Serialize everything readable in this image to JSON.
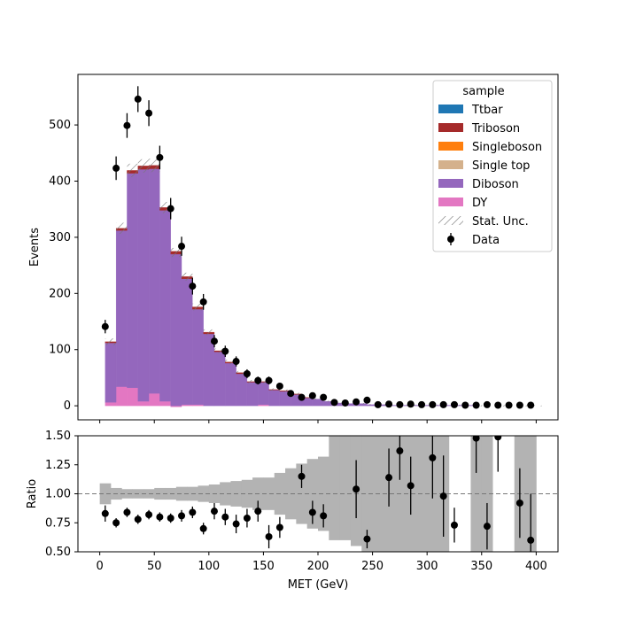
{
  "chart_data": [
    {
      "type": "bar",
      "stacked": true,
      "ylabel": "Events",
      "xlim": [
        -20,
        420
      ],
      "ylim": [
        -25,
        590
      ],
      "yticks": [
        0,
        100,
        200,
        300,
        400,
        500
      ],
      "bin_edges": [
        5,
        15,
        25,
        35,
        45,
        55,
        65,
        75,
        85,
        95,
        105,
        115,
        125,
        135,
        145,
        155,
        165,
        175,
        185,
        195,
        205,
        215,
        225,
        235,
        245,
        255,
        265,
        275,
        285,
        295,
        305,
        315,
        325,
        335,
        345,
        355,
        365,
        375,
        385,
        395,
        405
      ],
      "series": [
        {
          "name": "DY",
          "color": "#e377c2",
          "values": [
            6,
            34,
            32,
            8,
            22,
            8,
            -2,
            2,
            2,
            0,
            0,
            0,
            0,
            0,
            2,
            0,
            0,
            0,
            0,
            0,
            0,
            0,
            0,
            0,
            0,
            0,
            0,
            0,
            0,
            0,
            0,
            0,
            0,
            0,
            0,
            0,
            0,
            0,
            0,
            0
          ]
        },
        {
          "name": "Diboson",
          "color": "#9467bd",
          "values": [
            106,
            278,
            382,
            413,
            400,
            340,
            270,
            224,
            170,
            128,
            96,
            76,
            57,
            42,
            40,
            28,
            26,
            20,
            14,
            12,
            8,
            5,
            4,
            4,
            2,
            2,
            1,
            1,
            1,
            1,
            1,
            1,
            1,
            1,
            0,
            0,
            0,
            0,
            0,
            0
          ]
        },
        {
          "name": "Single top",
          "color": "#d4b18c",
          "values": [
            0,
            0,
            0,
            0,
            0,
            0,
            0,
            0,
            0,
            0,
            0,
            0,
            0,
            0,
            0,
            0,
            0,
            0,
            0,
            0,
            0,
            0,
            0,
            0,
            0,
            0,
            0,
            0,
            0,
            0,
            0,
            0,
            0,
            0,
            0,
            0,
            0,
            0,
            0,
            0
          ]
        },
        {
          "name": "Singleboson",
          "color": "#ff7f0e",
          "values": [
            0,
            0,
            0,
            0,
            0,
            0,
            0,
            0,
            0,
            0,
            0,
            0,
            0,
            0,
            0,
            0,
            0,
            0,
            0,
            0,
            0,
            0,
            0,
            0,
            0,
            0,
            0,
            0,
            0,
            0,
            0,
            0,
            0,
            0,
            0,
            0,
            0,
            0,
            0,
            0
          ]
        },
        {
          "name": "Triboson",
          "color": "#a52a2a",
          "values": [
            2,
            4,
            5,
            6,
            6,
            5,
            5,
            4,
            4,
            3,
            2,
            2,
            2,
            1,
            1,
            1,
            1,
            1,
            1,
            0,
            0,
            0,
            0,
            0,
            0,
            0,
            0,
            0,
            0,
            0,
            0,
            0,
            0,
            0,
            0,
            0,
            0,
            0,
            0,
            0
          ]
        },
        {
          "name": "Ttbar",
          "color": "#1f77b4",
          "values": [
            0,
            0,
            0,
            0,
            0,
            0,
            0,
            0,
            0,
            0,
            0,
            0,
            0,
            0,
            0,
            0,
            0,
            0,
            0,
            0,
            0,
            0,
            0,
            0,
            0,
            0,
            0,
            0,
            0,
            0,
            0,
            0,
            0,
            0,
            0,
            0,
            0,
            0,
            0,
            0
          ]
        }
      ],
      "stat_unc": [
        6,
        10,
        12,
        12,
        12,
        10,
        8,
        7,
        6,
        5,
        4,
        4,
        3,
        3,
        3,
        2,
        2,
        2,
        2,
        1,
        1,
        1,
        1,
        1,
        1,
        1,
        1,
        1,
        1,
        1,
        1,
        1,
        1,
        1,
        1,
        1,
        1,
        1,
        1,
        1
      ],
      "data": {
        "name": "Data",
        "x": [
          5,
          15,
          25,
          35,
          45,
          55,
          65,
          75,
          85,
          95,
          105,
          115,
          125,
          135,
          145,
          155,
          165,
          175,
          185,
          195,
          205,
          215,
          225,
          235,
          245,
          255,
          265,
          275,
          285,
          295,
          305,
          315,
          325,
          335,
          345,
          355,
          365,
          375,
          385,
          395
        ],
        "y": [
          141,
          423,
          499,
          546,
          521,
          442,
          351,
          284,
          213,
          185,
          115,
          97,
          79,
          57,
          45,
          45,
          35,
          22,
          15,
          18,
          15,
          6,
          5,
          7,
          10,
          2,
          3,
          2,
          3,
          2,
          2,
          2,
          2,
          1,
          1,
          2,
          1,
          1,
          1,
          1
        ],
        "err": [
          12,
          21,
          22,
          23,
          23,
          21,
          19,
          17,
          15,
          14,
          11,
          10,
          9,
          8,
          7,
          7,
          6,
          5,
          4,
          4,
          4,
          2,
          2,
          3,
          3,
          1,
          2,
          1,
          2,
          1,
          1,
          1,
          1,
          1,
          1,
          1,
          1,
          1,
          1,
          1
        ]
      },
      "legend": {
        "title": "sample",
        "position": "top-right"
      }
    },
    {
      "type": "scatter",
      "xlabel": "MET (GeV)",
      "ylabel": "Ratio",
      "xlim": [
        -20,
        420
      ],
      "ylim": [
        0.5,
        1.5
      ],
      "xticks": [
        0,
        50,
        100,
        150,
        200,
        250,
        300,
        350,
        400
      ],
      "yticks": [
        "0.50",
        "0.75",
        "1.00",
        "1.25",
        "1.50"
      ],
      "reference_line": 1.0,
      "unc_band": {
        "edges": [
          0,
          10,
          20,
          30,
          40,
          50,
          60,
          70,
          80,
          90,
          100,
          110,
          120,
          130,
          140,
          150,
          160,
          170,
          180,
          190,
          200,
          210,
          220,
          230,
          240,
          250,
          260,
          270,
          280,
          290,
          300,
          310,
          320,
          330,
          340,
          350,
          360,
          370,
          380,
          390,
          400
        ],
        "low": [
          0.91,
          0.95,
          0.96,
          0.96,
          0.96,
          0.95,
          0.95,
          0.94,
          0.94,
          0.93,
          0.92,
          0.9,
          0.89,
          0.88,
          0.86,
          0.86,
          0.82,
          0.78,
          0.74,
          0.7,
          0.68,
          0.6,
          0.6,
          0.55,
          0.5,
          0.5,
          0.5,
          0.5,
          0.5,
          0.5,
          0.5,
          0.5,
          1.0,
          1.0,
          0.5,
          0.5,
          1.0,
          1.0,
          0.5,
          0.5
        ],
        "high": [
          1.09,
          1.05,
          1.04,
          1.04,
          1.04,
          1.05,
          1.05,
          1.06,
          1.06,
          1.07,
          1.08,
          1.1,
          1.11,
          1.12,
          1.14,
          1.14,
          1.18,
          1.22,
          1.26,
          1.3,
          1.32,
          1.5,
          1.5,
          1.5,
          1.5,
          1.5,
          1.5,
          1.5,
          1.5,
          1.5,
          1.5,
          1.5,
          1.0,
          1.0,
          1.5,
          1.5,
          1.0,
          1.0,
          1.5,
          1.5
        ]
      },
      "points": {
        "x": [
          5,
          15,
          25,
          35,
          45,
          55,
          65,
          75,
          85,
          95,
          105,
          115,
          125,
          135,
          145,
          155,
          165,
          185,
          195,
          205,
          235,
          245,
          265,
          275,
          285,
          305,
          315,
          325,
          345,
          355,
          365,
          385,
          395
        ],
        "y": [
          0.83,
          0.75,
          0.84,
          0.78,
          0.82,
          0.8,
          0.79,
          0.81,
          0.84,
          0.7,
          0.85,
          0.8,
          0.74,
          0.79,
          0.85,
          0.63,
          0.71,
          1.15,
          0.84,
          0.81,
          1.04,
          0.61,
          1.14,
          1.37,
          1.07,
          1.31,
          0.98,
          0.73,
          1.48,
          0.72,
          1.49,
          0.92,
          0.6
        ],
        "err": [
          0.07,
          0.04,
          0.04,
          0.04,
          0.04,
          0.04,
          0.04,
          0.05,
          0.05,
          0.05,
          0.07,
          0.07,
          0.08,
          0.08,
          0.09,
          0.1,
          0.09,
          0.1,
          0.1,
          0.1,
          0.25,
          0.08,
          0.25,
          0.25,
          0.25,
          0.35,
          0.35,
          0.15,
          0.3,
          0.2,
          0.3,
          0.3,
          0.4
        ]
      }
    }
  ]
}
